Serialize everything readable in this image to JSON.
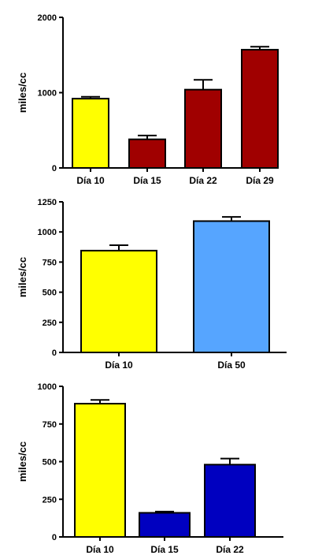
{
  "chart_data": [
    {
      "type": "bar",
      "ylabel": "miles/cc",
      "ylim": [
        0,
        2000
      ],
      "yticks": [
        0,
        1000,
        2000
      ],
      "categories": [
        "Día 10",
        "Día 15",
        "Día 22",
        "Día 29"
      ],
      "values": [
        920,
        380,
        1040,
        1570
      ],
      "errors": [
        25,
        50,
        130,
        40
      ],
      "colors": [
        "#ffff00",
        "#a00000",
        "#a00000",
        "#a00000"
      ]
    },
    {
      "type": "bar",
      "ylabel": "miles/cc",
      "ylim": [
        0,
        1250
      ],
      "yticks": [
        0,
        250,
        500,
        750,
        1000,
        1250
      ],
      "categories": [
        "Día 10",
        "Día 50"
      ],
      "values": [
        845,
        1090
      ],
      "errors": [
        45,
        35
      ],
      "colors": [
        "#ffff00",
        "#56a5ff"
      ]
    },
    {
      "type": "bar",
      "ylabel": "miles/cc",
      "ylim": [
        0,
        1000
      ],
      "yticks": [
        0,
        250,
        500,
        750,
        1000
      ],
      "categories": [
        "Día 10",
        "Día 15",
        "Día 22"
      ],
      "values": [
        885,
        160,
        480
      ],
      "errors": [
        25,
        8,
        40
      ],
      "colors": [
        "#ffff00",
        "#0000c0",
        "#0000c0"
      ]
    }
  ]
}
